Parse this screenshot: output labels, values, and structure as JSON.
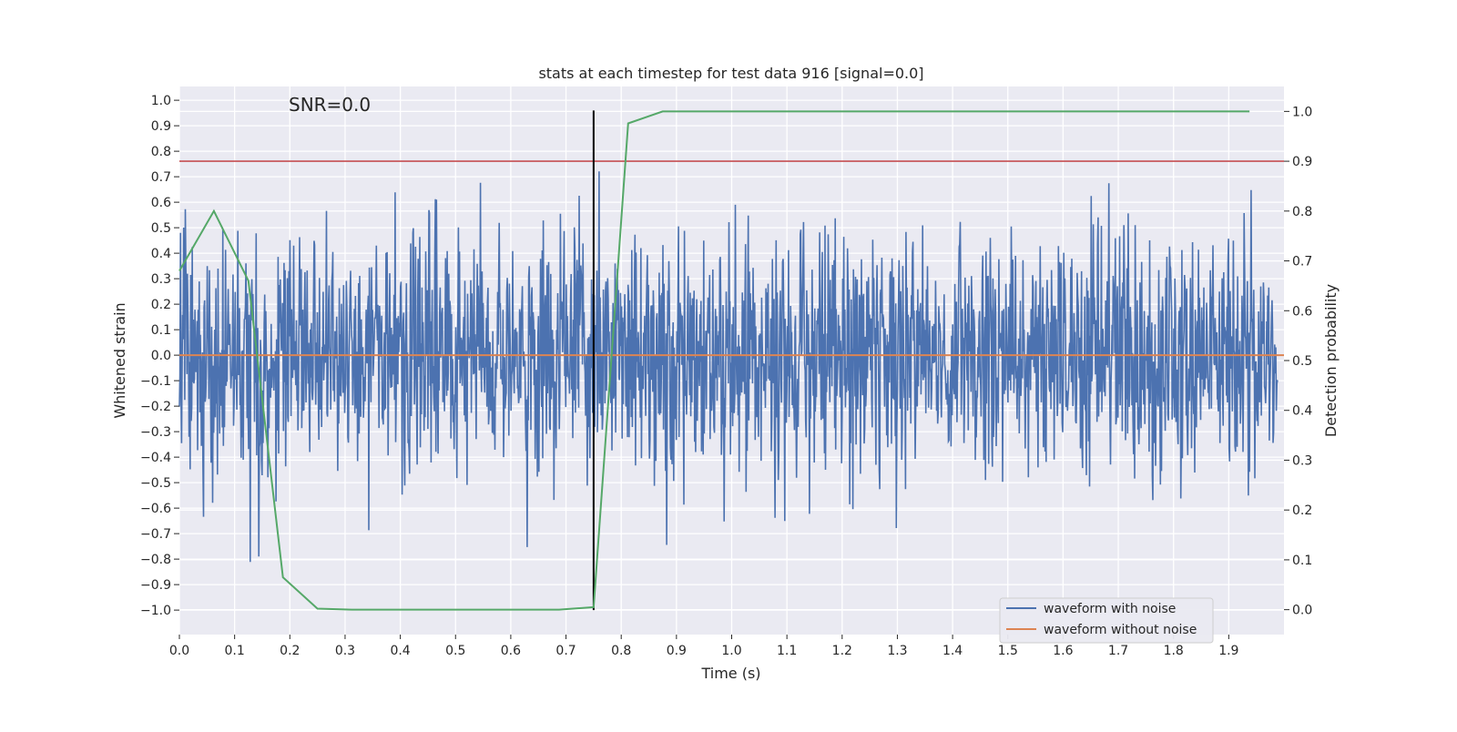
{
  "chart_data": {
    "type": "line",
    "title": "stats at each timestep for test data 916 [signal=0.0]",
    "annotation": "SNR=0.0",
    "xlabel": "Time (s)",
    "ylabel_left": "Whitened strain",
    "ylabel_right": "Detection probability",
    "xlim": [
      0.0,
      2.0
    ],
    "ylim_left": [
      -1.096,
      1.054
    ],
    "ylim_right": [
      -0.05,
      1.05
    ],
    "x_ticks": [
      "0.0",
      "0.1",
      "0.2",
      "0.3",
      "0.4",
      "0.5",
      "0.6",
      "0.7",
      "0.8",
      "0.9",
      "1.0",
      "1.1",
      "1.2",
      "1.3",
      "1.4",
      "1.5",
      "1.6",
      "1.7",
      "1.8",
      "1.9"
    ],
    "y_ticks_left": [
      "1.0",
      "0.9",
      "0.8",
      "0.7",
      "0.6",
      "0.5",
      "0.4",
      "0.3",
      "0.2",
      "0.1",
      "0.0",
      "−0.1",
      "−0.2",
      "−0.3",
      "−0.4",
      "−0.5",
      "−0.6",
      "−0.7",
      "−0.8",
      "−0.9",
      "−1.0"
    ],
    "y_ticks_right": [
      "1.0",
      "0.9",
      "0.8",
      "0.7",
      "0.6",
      "0.5",
      "0.4",
      "0.3",
      "0.2",
      "0.1",
      "0.0"
    ],
    "grid": true,
    "legend_position": "lower-right",
    "series": [
      {
        "name": "waveform with noise",
        "axis": "left",
        "color": "#4c72b0",
        "description_values": "whitened noise samples, roughly within -1.0 to 0.96"
      },
      {
        "name": "waveform without noise",
        "axis": "left",
        "color": "#dd8452",
        "x": [
          0.0,
          2.0
        ],
        "y": [
          0.0,
          0.0
        ]
      },
      {
        "axis": "right",
        "color": "#55a868",
        "x": [
          0.0,
          0.0625,
          0.125,
          0.1875,
          0.25,
          0.3125,
          0.375,
          0.4375,
          0.5,
          0.5625,
          0.625,
          0.6875,
          0.75,
          0.8125,
          0.875,
          0.9375,
          1.0,
          1.0625,
          1.125,
          1.1875,
          1.25,
          1.3125,
          1.375,
          1.4375,
          1.5,
          1.5625,
          1.625,
          1.6875,
          1.75,
          1.8125,
          1.875,
          1.9375
        ],
        "y": [
          0.68,
          0.8,
          0.66,
          0.065,
          0.002,
          0.0,
          0.0,
          0.0,
          0.0,
          0.0,
          0.0,
          0.0,
          0.005,
          0.976,
          1.0,
          1.0,
          1.0,
          1.0,
          1.0,
          1.0,
          1.0,
          1.0,
          1.0,
          1.0,
          1.0,
          1.0,
          1.0,
          1.0,
          1.0,
          1.0,
          1.0,
          1.0
        ]
      }
    ],
    "threshold": {
      "axis": "right",
      "y": 0.9,
      "color": "#c44e52"
    },
    "marker_vertical": {
      "x": 0.75,
      "y_range_left": [
        -1.0,
        0.96
      ],
      "color": "#000000"
    }
  }
}
